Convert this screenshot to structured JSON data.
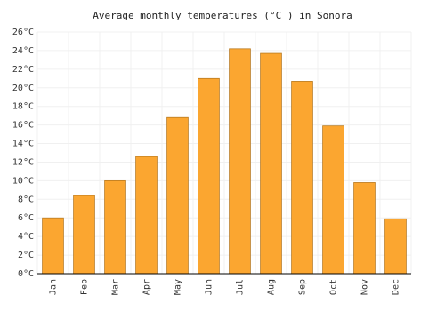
{
  "chart_data": {
    "type": "bar",
    "title": "Average monthly temperatures (°C ) in Sonora",
    "categories": [
      "Jan",
      "Feb",
      "Mar",
      "Apr",
      "May",
      "Jun",
      "Jul",
      "Aug",
      "Sep",
      "Oct",
      "Nov",
      "Dec"
    ],
    "values": [
      6.0,
      8.4,
      10.0,
      12.6,
      16.8,
      21.0,
      24.2,
      23.7,
      20.7,
      15.9,
      9.8,
      5.9
    ],
    "color": "#fba630",
    "ylim": [
      0,
      26
    ],
    "yticks": [
      {
        "value": 0,
        "label": "0°C"
      },
      {
        "value": 2,
        "label": "2°C"
      },
      {
        "value": 4,
        "label": "4°C"
      },
      {
        "value": 6,
        "label": "6°C"
      },
      {
        "value": 8,
        "label": "8°C"
      },
      {
        "value": 10,
        "label": "10°C"
      },
      {
        "value": 12,
        "label": "12°C"
      },
      {
        "value": 14,
        "label": "14°C"
      },
      {
        "value": 16,
        "label": "16°C"
      },
      {
        "value": 18,
        "label": "18°C"
      },
      {
        "value": 20,
        "label": "20°C"
      },
      {
        "value": 22,
        "label": "22°C"
      },
      {
        "value": 24,
        "label": "24°C"
      },
      {
        "value": 26,
        "label": "26°C"
      }
    ],
    "grid": true
  }
}
